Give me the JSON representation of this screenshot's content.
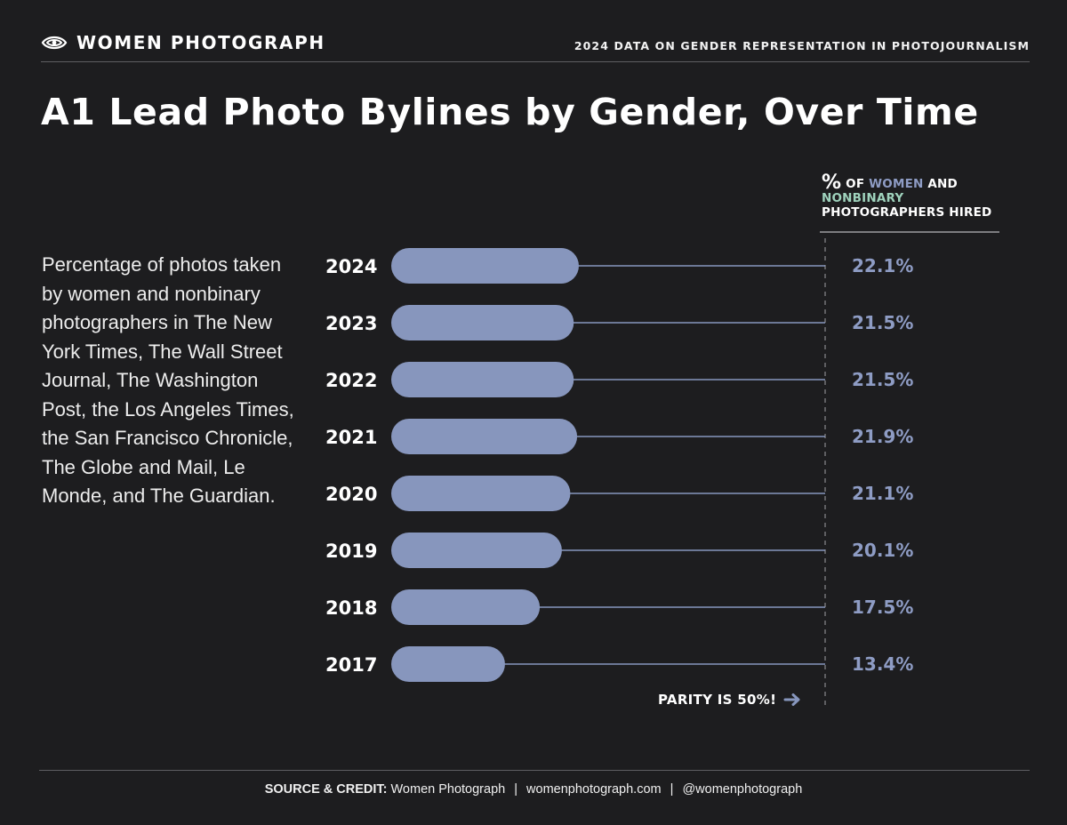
{
  "header": {
    "brand": "WOMEN PHOTOGRAPH",
    "tagline": "2024 DATA ON GENDER REPRESENTATION IN PHOTOJOURNALISM"
  },
  "description": "Percentage of photos taken by women and nonbinary photographers in The New York Times, The Wall Street Journal, The Washington Post, the Los Angeles Times, the San Francisco Chronicle, The Globe and Mail, Le Monde, and The Guardian.",
  "column_header": {
    "pct_symbol": "%",
    "of": "OF",
    "women": "WOMEN",
    "and": "AND",
    "nonbinary": "NONBINARY",
    "photographers_hired": "PHOTOGRAPHERS HIRED"
  },
  "parity_note": "PARITY IS 50%!",
  "footer": {
    "source_label": "SOURCE & CREDIT:",
    "source": "Women Photograph",
    "website": "womenphotograph.com",
    "handle": "@womenphotograph"
  },
  "colors": {
    "background": "#1d1d1f",
    "bar": "#8796bd",
    "value_text": "#8e9cc4",
    "nonbinary": "#9fd3bd",
    "leader_line": "#8796bd",
    "parity_line": "#8a8a8e"
  },
  "chart_data": {
    "type": "bar",
    "orientation": "horizontal",
    "title": "A1 Lead Photo Bylines by Gender, Over Time",
    "categories": [
      "2024",
      "2023",
      "2022",
      "2021",
      "2020",
      "2019",
      "2018",
      "2017"
    ],
    "values": [
      22.1,
      21.5,
      21.5,
      21.9,
      21.1,
      20.1,
      17.5,
      13.4
    ],
    "value_labels": [
      "22.1%",
      "21.5%",
      "21.5%",
      "21.9%",
      "21.1%",
      "20.1%",
      "17.5%",
      "13.4%"
    ],
    "unit": "%",
    "reference_line": 50,
    "xlim": [
      0,
      50
    ],
    "grid": false,
    "legend": "none"
  }
}
